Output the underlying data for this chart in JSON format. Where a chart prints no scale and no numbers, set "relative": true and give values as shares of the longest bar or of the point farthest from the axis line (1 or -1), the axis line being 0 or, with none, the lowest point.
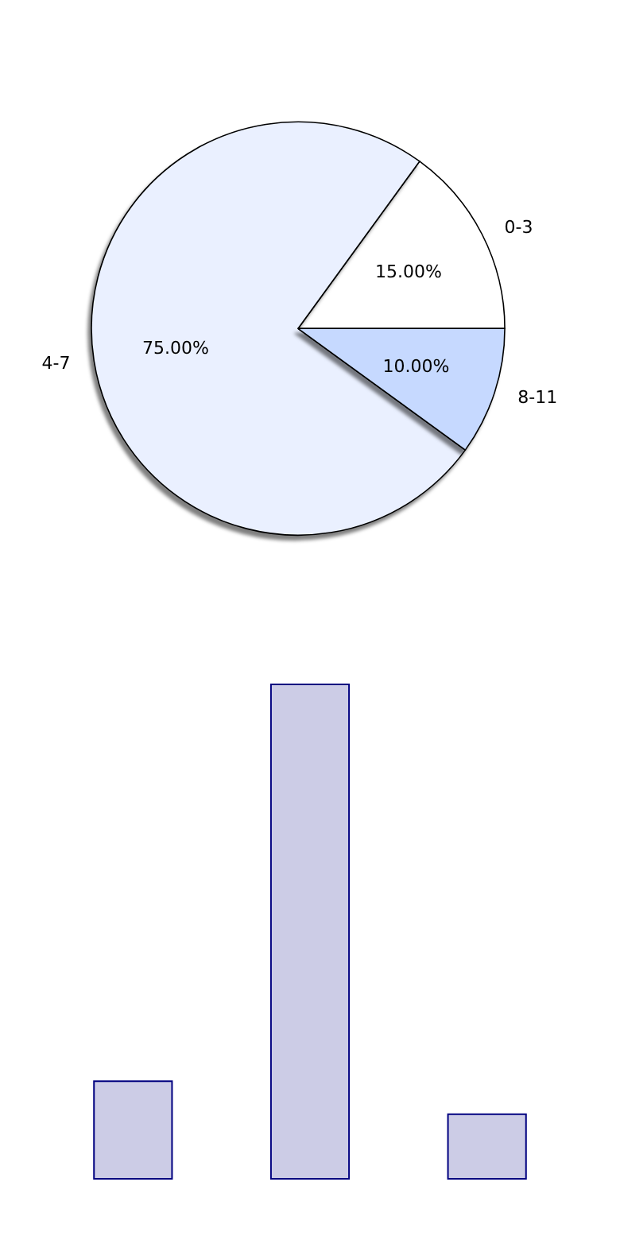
{
  "chart_data": [
    {
      "type": "pie",
      "categories": [
        "0-3",
        "4-7",
        "8-11"
      ],
      "values": [
        15,
        75,
        10
      ],
      "colors": [
        "#ffffff",
        "#eaf0ff",
        "#c6d9ff"
      ],
      "value_labels": [
        "15.00%",
        "75.00%",
        "10.00%"
      ],
      "legend": false
    },
    {
      "type": "bar",
      "relative": true,
      "categories": [
        null,
        null,
        null
      ],
      "values": [
        0.2,
        1,
        0.1333
      ],
      "color": "#ccccE6",
      "legend": false
    }
  ]
}
